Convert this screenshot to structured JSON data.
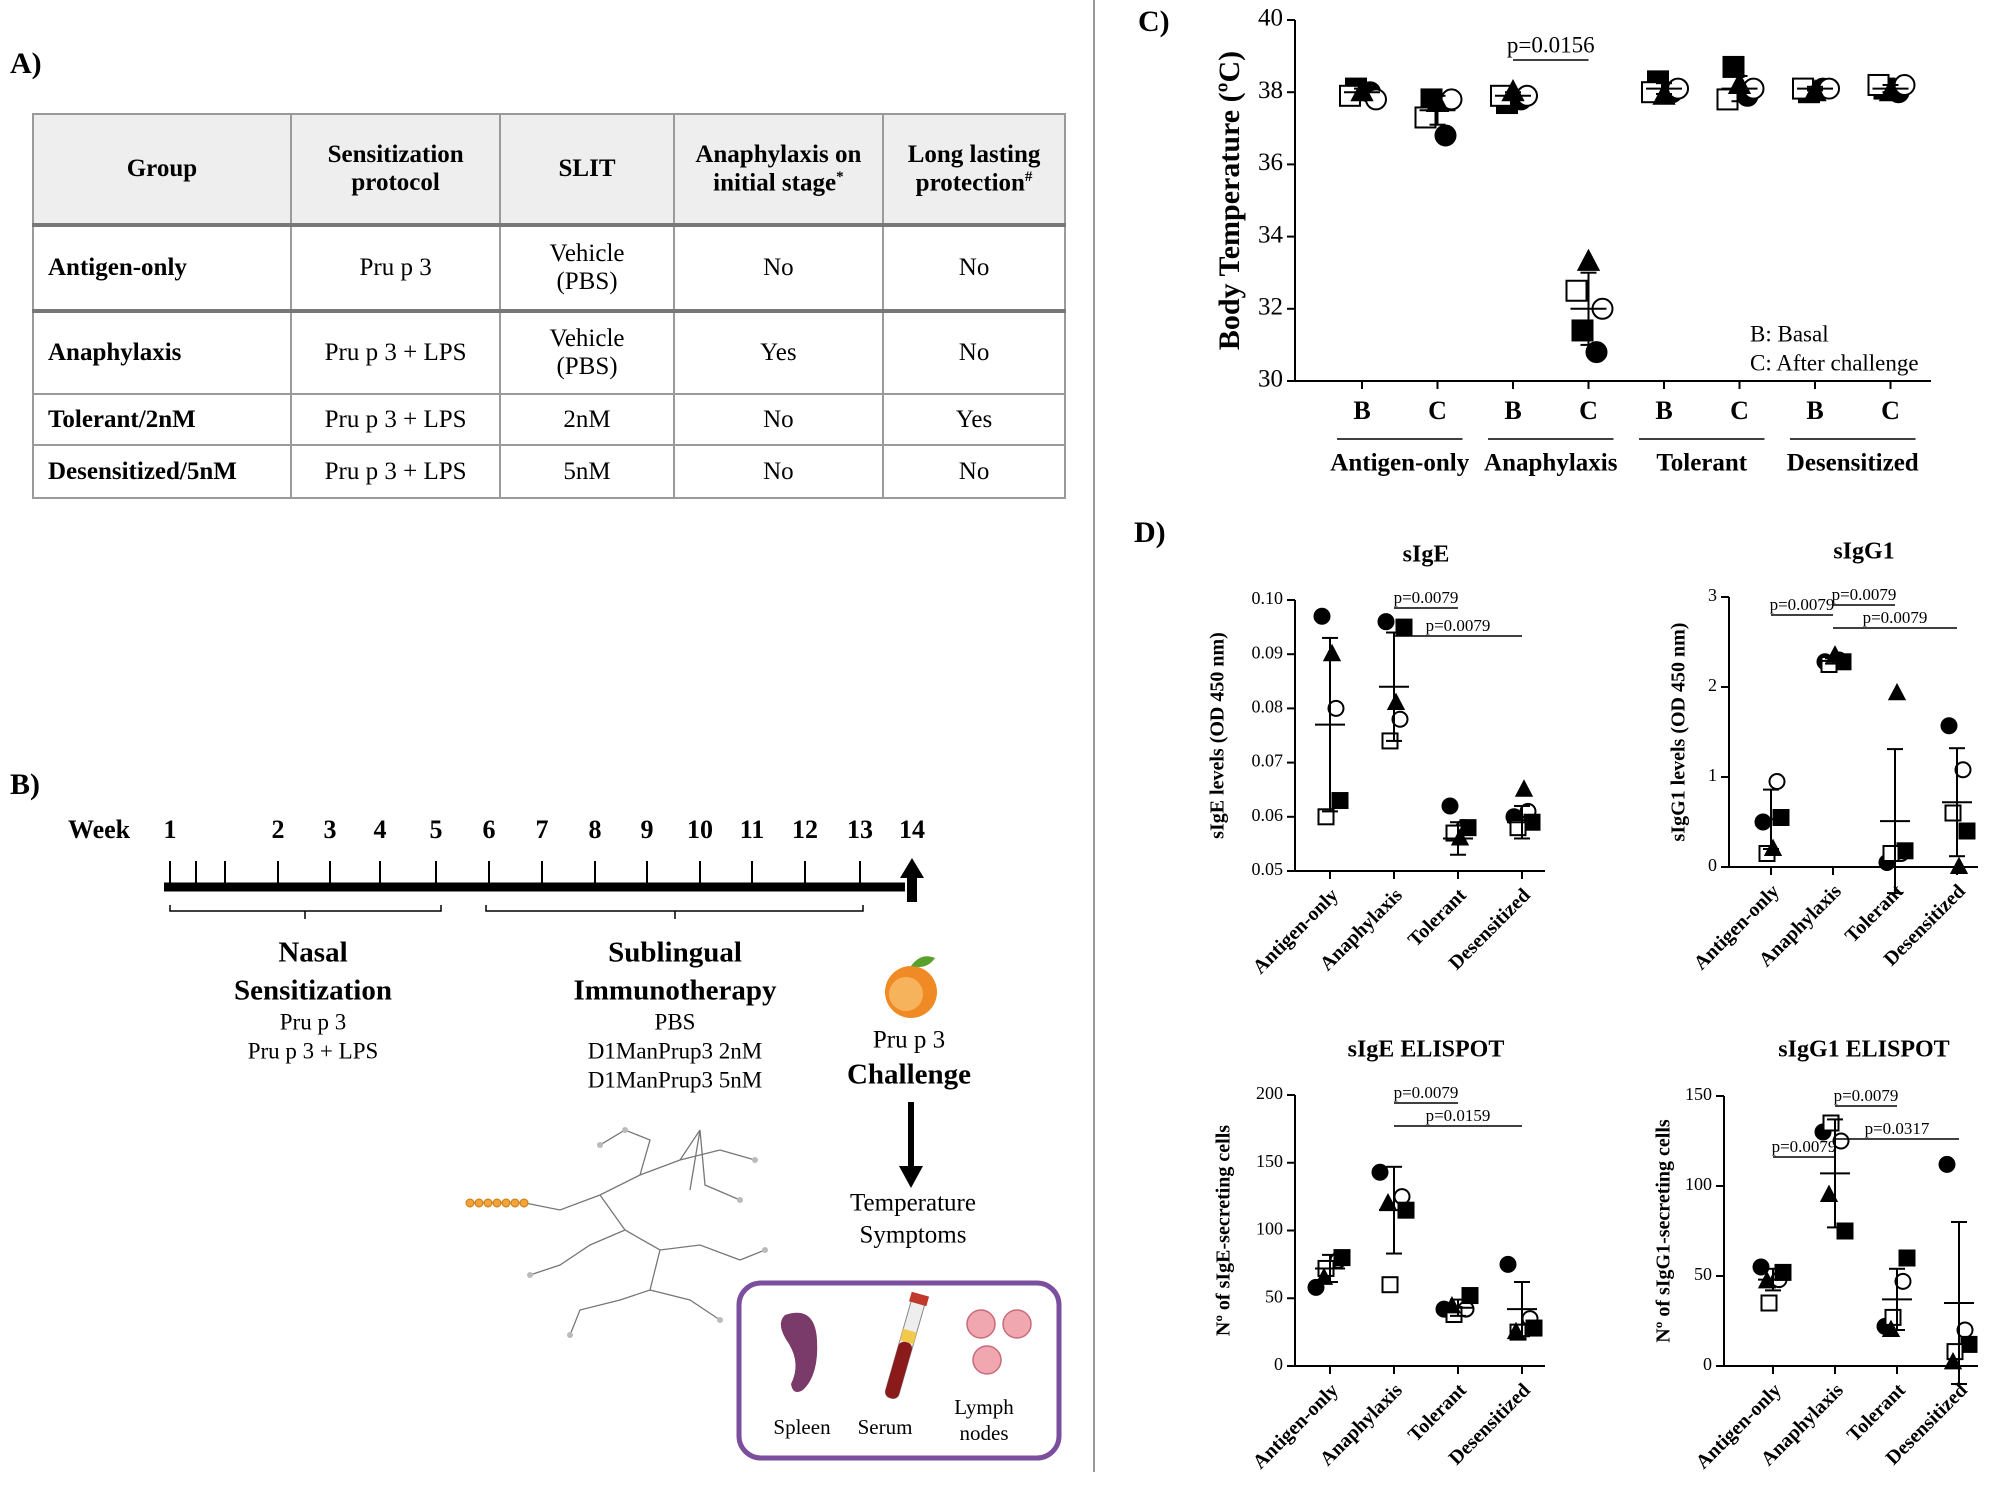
{
  "panel_labels": [
    "A)",
    "B)",
    "C)",
    "D)"
  ],
  "table": {
    "header": [
      {
        "text": "Group"
      },
      {
        "text": "Sensitization protocol"
      },
      {
        "text": "SLIT"
      },
      {
        "text": "Anaphylaxis on initial stage",
        "mark": "*"
      },
      {
        "text": "Long lasting protection",
        "mark": "#"
      }
    ],
    "rows": [
      [
        "Antigen-only",
        "Pru p 3",
        "Vehicle (PBS)",
        "No",
        "No"
      ],
      [
        "Anaphylaxis",
        "Pru p 3 + LPS",
        "Vehicle (PBS)",
        "Yes",
        "No"
      ],
      [
        "Tolerant/2nM",
        "Pru p 3 + LPS",
        "2nM",
        "No",
        "Yes"
      ],
      [
        "Desensitized/5nM",
        "Pru p 3 + LPS",
        "5nM",
        "No",
        "No"
      ]
    ]
  },
  "timeline": {
    "label": "Week",
    "weeks": [
      1,
      2,
      3,
      4,
      5,
      6,
      7,
      8,
      9,
      10,
      11,
      12,
      13,
      14
    ],
    "sections": [
      {
        "title": [
          "Nasal",
          "Sensitization"
        ],
        "items": [
          "Pru p 3",
          "Pru p 3 + LPS"
        ]
      },
      {
        "title": [
          "Sublingual",
          "Immunotherapy"
        ],
        "items": [
          "PBS",
          "D1ManPrup3 2nM",
          "D1ManPrup3 5nM"
        ]
      }
    ],
    "challenge": {
      "antigen": "Pru p 3",
      "title": "Challenge",
      "readouts": [
        "Temperature",
        "Symptoms"
      ]
    },
    "samples": [
      [
        "Spleen"
      ],
      [
        "Serum"
      ],
      [
        "Lymph",
        "nodes"
      ]
    ]
  },
  "chart_data": [
    {
      "type": "dotplot",
      "ylabel": "Body Temperature (ºC)",
      "categories": [
        "B",
        "C",
        "B",
        "C",
        "B",
        "C",
        "B",
        "C"
      ],
      "groups": [
        "Antigen-only",
        "Anaphylaxis",
        "Tolerant",
        "Desensitized"
      ],
      "notes": [
        "B: Basal",
        "C: After challenge"
      ],
      "ylim": [
        30,
        40
      ],
      "yticks": [
        30,
        32,
        34,
        36,
        38,
        40
      ],
      "series": [
        {
          "marker": "circle",
          "filled": true,
          "values": [
            38.0,
            36.8,
            37.8,
            30.8,
            38.0,
            37.9,
            38.1,
            38.0
          ]
        },
        {
          "marker": "circle",
          "filled": false,
          "values": [
            37.8,
            37.8,
            37.9,
            32.0,
            38.1,
            38.1,
            38.1,
            38.2
          ]
        },
        {
          "marker": "square",
          "filled": true,
          "values": [
            38.1,
            37.8,
            37.7,
            31.4,
            38.3,
            38.7,
            38.0,
            38.1
          ]
        },
        {
          "marker": "square",
          "filled": false,
          "values": [
            37.9,
            37.3,
            37.9,
            32.5,
            38.0,
            37.8,
            38.1,
            38.2
          ]
        },
        {
          "marker": "triangle",
          "filled": true,
          "values": [
            38.0,
            37.7,
            38.0,
            33.3,
            37.9,
            38.2,
            38.0,
            38.0
          ]
        }
      ],
      "mean": [
        38.0,
        37.5,
        37.9,
        32.0,
        38.1,
        38.1,
        38.1,
        38.1
      ],
      "sd": [
        0.1,
        0.4,
        0.1,
        1.0,
        0.15,
        0.35,
        0.05,
        0.1
      ],
      "annotations": [
        {
          "from": 2,
          "to": 3,
          "label": "p=0.0156"
        }
      ]
    },
    {
      "type": "dotplot",
      "title": "sIgE",
      "ylabel": "sIgE levels (OD 450 nm)",
      "categories": [
        "Antigen-only",
        "Anaphylaxis",
        "Tolerant",
        "Desensitized"
      ],
      "ylim": [
        0.05,
        0.1
      ],
      "yticks": [
        0.05,
        0.06,
        0.07,
        0.08,
        0.09,
        {
          "value": 0.1,
          "label": "0.10"
        }
      ],
      "series": [
        {
          "marker": "circle",
          "filled": true,
          "values": [
            0.097,
            0.096,
            0.062,
            0.06
          ]
        },
        {
          "marker": "circle",
          "filled": false,
          "values": [
            0.08,
            0.078,
            0.058,
            0.061
          ]
        },
        {
          "marker": "square",
          "filled": true,
          "values": [
            0.063,
            0.095,
            0.058,
            0.059
          ]
        },
        {
          "marker": "square",
          "filled": false,
          "values": [
            0.06,
            0.074,
            0.057,
            0.058
          ]
        },
        {
          "marker": "triangle",
          "filled": true,
          "values": [
            0.09,
            0.081,
            0.056,
            0.065
          ]
        }
      ],
      "mean": [
        0.077,
        0.084,
        0.056,
        0.059
      ],
      "sd": [
        0.016,
        0.01,
        0.003,
        0.003
      ],
      "annotations": [
        {
          "from": 1,
          "to": 2,
          "label": "p=0.0079"
        },
        {
          "from": 1,
          "to": 3,
          "label": "p=0.0079"
        }
      ]
    },
    {
      "type": "dotplot",
      "title": "sIgG1",
      "ylabel": "sIgG1 levels (OD 450 nm)",
      "categories": [
        "Antigen-only",
        "Anaphylaxis",
        "Tolerant",
        "Desensitized"
      ],
      "ylim": [
        0,
        3
      ],
      "yticks": [
        0,
        1,
        2,
        3
      ],
      "series": [
        {
          "marker": "circle",
          "filled": true,
          "values": [
            0.5,
            2.28,
            0.05,
            1.57
          ]
        },
        {
          "marker": "circle",
          "filled": false,
          "values": [
            0.95,
            2.3,
            0.15,
            1.08
          ]
        },
        {
          "marker": "square",
          "filled": true,
          "values": [
            0.55,
            2.28,
            0.18,
            0.4
          ]
        },
        {
          "marker": "square",
          "filled": false,
          "values": [
            0.15,
            2.25,
            0.15,
            0.6
          ]
        },
        {
          "marker": "triangle",
          "filled": true,
          "values": [
            0.2,
            2.35,
            1.93,
            0.0
          ]
        }
      ],
      "mean": [
        0.53,
        2.29,
        0.51,
        0.72
      ],
      "sd": [
        0.33,
        0.03,
        0.8,
        0.6
      ],
      "annotations": [
        {
          "from": 0,
          "to": 1,
          "label": "p=0.0079"
        },
        {
          "from": 1,
          "to": 2,
          "label": "p=0.0079"
        },
        {
          "from": 1,
          "to": 3,
          "label": "p=0.0079"
        }
      ]
    },
    {
      "type": "dotplot",
      "title": "sIgE ELISPOT",
      "ylabel": "Nº of sIgE-secreting cells",
      "categories": [
        "Antigen-only",
        "Anaphylaxis",
        "Tolerant",
        "Desensitized"
      ],
      "ylim": [
        0,
        200
      ],
      "yticks": [
        0,
        50,
        100,
        150,
        200
      ],
      "series": [
        {
          "marker": "circle",
          "filled": true,
          "values": [
            58,
            143,
            42,
            75
          ]
        },
        {
          "marker": "circle",
          "filled": false,
          "values": [
            78,
            125,
            42,
            35
          ]
        },
        {
          "marker": "square",
          "filled": true,
          "values": [
            80,
            115,
            52,
            28
          ]
        },
        {
          "marker": "square",
          "filled": false,
          "values": [
            72,
            60,
            38,
            25
          ]
        },
        {
          "marker": "triangle",
          "filled": true,
          "values": [
            65,
            120,
            44,
            25
          ]
        }
      ],
      "mean": [
        72,
        115,
        43,
        42
      ],
      "sd": [
        10,
        32,
        6,
        20
      ],
      "annotations": [
        {
          "from": 1,
          "to": 2,
          "label": "p=0.0079"
        },
        {
          "from": 1,
          "to": 3,
          "label": "p=0.0159"
        }
      ]
    },
    {
      "type": "dotplot",
      "title": "sIgG1 ELISPOT",
      "ylabel": "Nº of sIgG1-secreting cells",
      "categories": [
        "Antigen-only",
        "Anaphylaxis",
        "Tolerant",
        "Desensitized"
      ],
      "ylim": [
        0,
        150
      ],
      "yticks": [
        0,
        50,
        100,
        150
      ],
      "series": [
        {
          "marker": "circle",
          "filled": true,
          "values": [
            55,
            130,
            22,
            112
          ]
        },
        {
          "marker": "circle",
          "filled": false,
          "values": [
            48,
            125,
            47,
            20
          ]
        },
        {
          "marker": "square",
          "filled": true,
          "values": [
            52,
            75,
            60,
            12
          ]
        },
        {
          "marker": "square",
          "filled": false,
          "values": [
            35,
            135,
            27,
            8
          ]
        },
        {
          "marker": "triangle",
          "filled": true,
          "values": [
            47,
            95,
            20,
            2
          ]
        }
      ],
      "mean": [
        48,
        107,
        37,
        35
      ],
      "sd": [
        6,
        30,
        17,
        45
      ],
      "annotations": [
        {
          "from": 0,
          "to": 1,
          "label": "p=0.0079"
        },
        {
          "from": 1,
          "to": 2,
          "label": "p=0.0079"
        },
        {
          "from": 1,
          "to": 3,
          "label": "p=0.0317"
        }
      ]
    }
  ]
}
